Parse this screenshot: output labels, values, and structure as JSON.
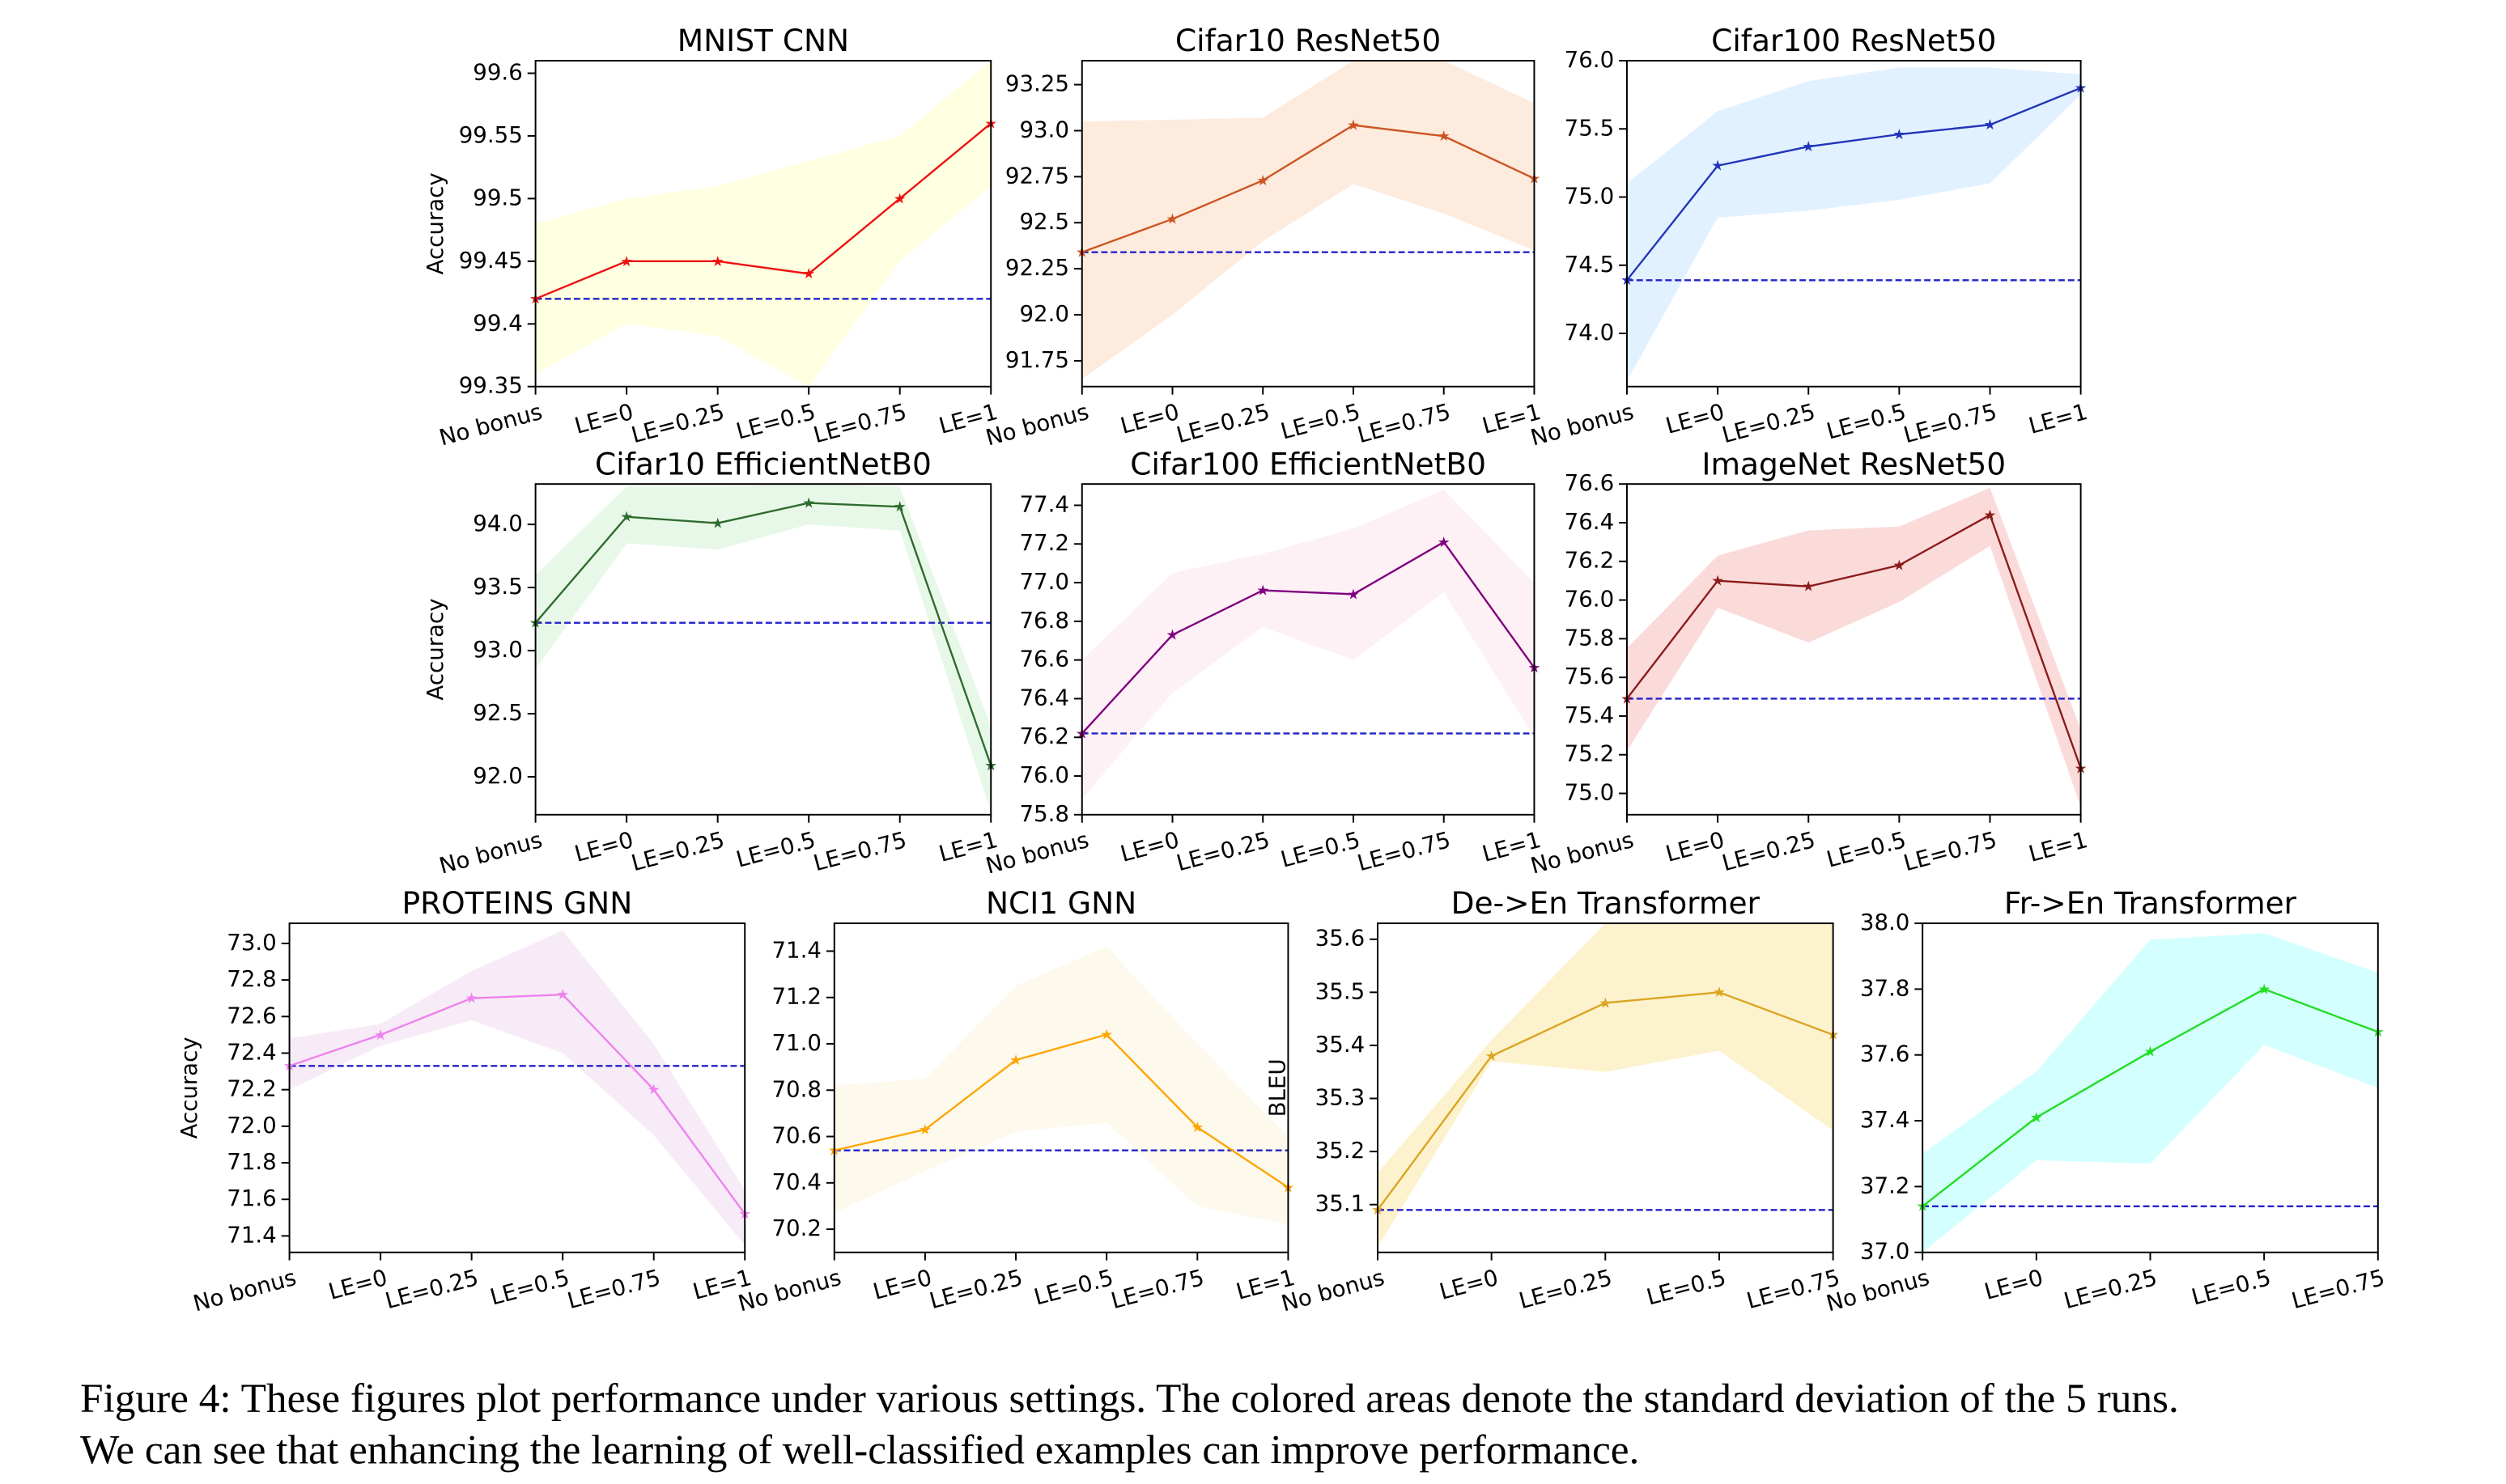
{
  "chart_data": [
    {
      "type": "line",
      "title": "MNIST CNN",
      "ylabel": "Accuracy",
      "categories": [
        "No bonus",
        "LE=0",
        "LE=0.25",
        "LE=0.5",
        "LE=0.75",
        "LE=1"
      ],
      "ylim": [
        99.35,
        99.61
      ],
      "yticks": [
        99.35,
        99.4,
        99.45,
        99.5,
        99.55,
        99.6
      ],
      "baseline": 99.42,
      "baseline_color": "#2222cc",
      "series": [
        {
          "color": "#ee1111",
          "fill": "#ffffdc",
          "values": [
            99.42,
            99.45,
            99.45,
            99.44,
            99.5,
            99.56
          ],
          "lower": [
            99.36,
            99.4,
            99.39,
            99.35,
            99.45,
            99.51
          ],
          "upper": [
            99.48,
            99.5,
            99.51,
            99.53,
            99.55,
            99.61
          ]
        }
      ]
    },
    {
      "type": "line",
      "title": "Cifar10 ResNet50",
      "categories": [
        "No bonus",
        "LE=0",
        "LE=0.25",
        "LE=0.5",
        "LE=0.75",
        "LE=1"
      ],
      "ylim": [
        91.61,
        93.38
      ],
      "yticks": [
        91.75,
        {
          "value": 92.0,
          "label": "92.0"
        },
        92.25,
        92.5,
        92.75,
        {
          "value": 93.0,
          "label": "93.0"
        },
        93.25
      ],
      "baseline": 92.34,
      "baseline_color": "#2222cc",
      "series": [
        {
          "color": "#cc5522",
          "fill": "#fde8d8",
          "values": [
            92.34,
            92.52,
            92.73,
            93.03,
            92.97,
            92.74
          ],
          "lower": [
            91.65,
            92.0,
            92.4,
            92.71,
            92.55,
            92.35
          ],
          "upper": [
            93.05,
            93.06,
            93.07,
            93.38,
            93.38,
            93.15
          ]
        }
      ]
    },
    {
      "type": "line",
      "title": "Cifar100 ResNet50",
      "categories": [
        "No bonus",
        "LE=0",
        "LE=0.25",
        "LE=0.5",
        "LE=0.75",
        "LE=1"
      ],
      "ylim": [
        73.61,
        76.0
      ],
      "yticks": [
        {
          "value": 74.0,
          "label": "74.0"
        },
        74.5,
        {
          "value": 75.0,
          "label": "75.0"
        },
        75.5,
        {
          "value": 76.0,
          "label": "76.0"
        }
      ],
      "baseline": 74.39,
      "baseline_color": "#2222cc",
      "series": [
        {
          "color": "#2233bb",
          "fill": "#dcefff",
          "values": [
            74.39,
            75.23,
            75.37,
            75.46,
            75.53,
            75.8
          ],
          "lower": [
            73.65,
            74.85,
            74.9,
            74.98,
            75.1,
            75.75
          ],
          "upper": [
            75.1,
            75.63,
            75.85,
            75.95,
            75.95,
            75.9
          ]
        }
      ]
    },
    {
      "type": "line",
      "title": "Cifar10 EfficientNetB0",
      "ylabel": "Accuracy",
      "categories": [
        "No bonus",
        "LE=0",
        "LE=0.25",
        "LE=0.5",
        "LE=0.75",
        "LE=1"
      ],
      "ylim": [
        91.7,
        94.32
      ],
      "yticks": [
        {
          "value": 92.0,
          "label": "92.0"
        },
        92.5,
        {
          "value": 93.0,
          "label": "93.0"
        },
        93.5,
        {
          "value": 94.0,
          "label": "94.0"
        }
      ],
      "baseline": 93.22,
      "baseline_color": "#2222cc",
      "series": [
        {
          "color": "#2e6b2e",
          "fill": "#e4f7e4",
          "values": [
            93.22,
            94.06,
            94.01,
            94.17,
            94.14,
            92.09
          ],
          "lower": [
            92.85,
            93.85,
            93.8,
            94.0,
            93.95,
            91.72
          ],
          "upper": [
            93.6,
            94.3,
            94.3,
            94.32,
            94.3,
            92.4
          ]
        }
      ]
    },
    {
      "type": "line",
      "title": "Cifar100 EfficientNetB0",
      "categories": [
        "No bonus",
        "LE=0",
        "LE=0.25",
        "LE=0.5",
        "LE=0.75",
        "LE=1"
      ],
      "ylim": [
        75.8,
        77.51
      ],
      "yticks": [
        75.8,
        {
          "value": 76.0,
          "label": "76.0"
        },
        76.2,
        76.4,
        76.6,
        76.8,
        {
          "value": 77.0,
          "label": "77.0"
        },
        77.2,
        77.4
      ],
      "baseline": 76.22,
      "baseline_color": "#2222cc",
      "series": [
        {
          "color": "#800080",
          "fill": "#fdeff4",
          "values": [
            76.22,
            76.73,
            76.96,
            76.94,
            77.21,
            76.56
          ],
          "lower": [
            75.88,
            76.43,
            76.77,
            76.6,
            76.95,
            76.2
          ],
          "upper": [
            76.6,
            77.05,
            77.15,
            77.28,
            77.48,
            77.0
          ]
        }
      ]
    },
    {
      "type": "line",
      "title": "ImageNet ResNet50",
      "categories": [
        "No bonus",
        "LE=0",
        "LE=0.25",
        "LE=0.5",
        "LE=0.75",
        "LE=1"
      ],
      "ylim": [
        74.89,
        76.6
      ],
      "yticks": [
        {
          "value": 75.0,
          "label": "75.0"
        },
        75.2,
        75.4,
        75.6,
        75.8,
        {
          "value": 76.0,
          "label": "76.0"
        },
        76.2,
        76.4,
        76.6
      ],
      "baseline": 75.49,
      "baseline_color": "#2222cc",
      "series": [
        {
          "color": "#8b1a1a",
          "fill": "#fad4d4",
          "values": [
            75.49,
            76.1,
            76.07,
            76.18,
            76.44,
            75.13
          ],
          "lower": [
            75.22,
            75.96,
            75.78,
            75.99,
            76.28,
            74.93
          ],
          "upper": [
            75.75,
            76.23,
            76.36,
            76.38,
            76.58,
            75.33
          ]
        }
      ]
    },
    {
      "type": "line",
      "title": "PROTEINS GNN",
      "ylabel": "Accuracy",
      "categories": [
        "No bonus",
        "LE=0",
        "LE=0.25",
        "LE=0.5",
        "LE=0.75",
        "LE=1"
      ],
      "ylim": [
        71.31,
        73.11
      ],
      "yticks": [
        71.4,
        71.6,
        71.8,
        {
          "value": 72.0,
          "label": "72.0"
        },
        72.2,
        72.4,
        72.6,
        72.8,
        {
          "value": 73.0,
          "label": "73.0"
        }
      ],
      "baseline": 72.33,
      "baseline_color": "#2222cc",
      "series": [
        {
          "color": "#ee82ee",
          "fill": "#f6e8f6",
          "values": [
            72.33,
            72.5,
            72.7,
            72.72,
            72.2,
            71.52
          ],
          "lower": [
            72.2,
            72.44,
            72.58,
            72.4,
            71.95,
            71.35
          ],
          "upper": [
            72.48,
            72.56,
            72.85,
            73.07,
            72.45,
            71.65
          ]
        }
      ]
    },
    {
      "type": "line",
      "title": "NCI1 GNN",
      "categories": [
        "No bonus",
        "LE=0",
        "LE=0.25",
        "LE=0.5",
        "LE=0.75",
        "LE=1"
      ],
      "ylim": [
        70.1,
        71.52
      ],
      "yticks": [
        70.2,
        70.4,
        70.6,
        70.8,
        {
          "value": 71.0,
          "label": "71.0"
        },
        71.2,
        71.4
      ],
      "baseline": 70.54,
      "baseline_color": "#2222cc",
      "series": [
        {
          "color": "#ffa500",
          "fill": "#fdf8ea",
          "values": [
            70.54,
            70.63,
            70.93,
            71.04,
            70.64,
            70.38
          ],
          "lower": [
            70.27,
            70.45,
            70.62,
            70.66,
            70.3,
            70.22
          ],
          "upper": [
            70.82,
            70.85,
            71.25,
            71.42,
            71.0,
            70.6
          ]
        }
      ]
    },
    {
      "type": "line",
      "title": "De->En Transformer",
      "ylabel": "BLEU",
      "categories": [
        "No bonus",
        "LE=0",
        "LE=0.25",
        "LE=0.5",
        "LE=0.75"
      ],
      "ylim": [
        35.01,
        35.63
      ],
      "yticks": [
        35.1,
        35.2,
        35.3,
        35.4,
        35.5,
        35.6
      ],
      "baseline": 35.09,
      "baseline_color": "#2222cc",
      "series": [
        {
          "color": "#daa520",
          "fill": "#fdf0c6",
          "values": [
            35.09,
            35.38,
            35.48,
            35.5,
            35.42
          ],
          "lower": [
            35.02,
            35.37,
            35.35,
            35.39,
            35.24
          ],
          "upper": [
            35.16,
            35.41,
            35.63,
            35.63,
            35.63
          ]
        }
      ]
    },
    {
      "type": "line",
      "title": "Fr->En Transformer",
      "categories": [
        "No bonus",
        "LE=0",
        "LE=0.25",
        "LE=0.5",
        "LE=0.75"
      ],
      "ylim": [
        37.0,
        38.0
      ],
      "yticks": [
        {
          "value": 37.0,
          "label": "37.0"
        },
        37.2,
        37.4,
        37.6,
        37.8,
        {
          "value": 38.0,
          "label": "38.0"
        }
      ],
      "baseline": 37.14,
      "baseline_color": "#2222cc",
      "series": [
        {
          "color": "#22dd22",
          "fill": "#ccffff",
          "values": [
            37.14,
            37.41,
            37.61,
            37.8,
            37.67
          ],
          "lower": [
            37.0,
            37.28,
            37.27,
            37.63,
            37.5
          ],
          "upper": [
            37.3,
            37.55,
            37.95,
            37.97,
            37.85
          ]
        }
      ]
    }
  ],
  "caption": {
    "lines": [
      "Figure 4: These figures plot performance under various settings. The colored areas denote the standard deviation of the 5 runs.",
      "We can see that enhancing the learning of well-classified examples can improve performance."
    ]
  }
}
